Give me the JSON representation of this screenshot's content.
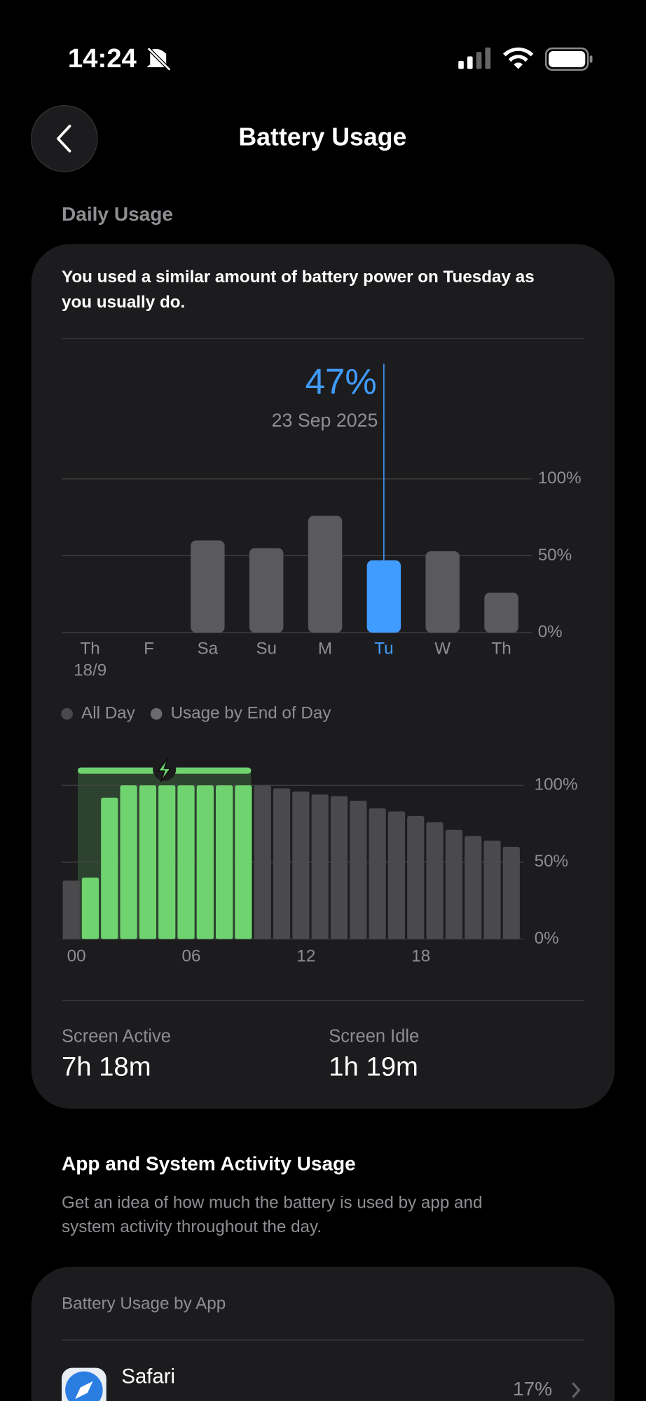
{
  "status": {
    "time": "14:24"
  },
  "header": {
    "title": "Battery Usage"
  },
  "daily": {
    "section_label": "Daily Usage",
    "summary_line1": "You used a similar amount of battery power on Tuesday as",
    "summary_line2": "you usually do.",
    "selected_date": "23 Sep 2025"
  },
  "chart_data": [
    {
      "type": "bar",
      "categories": [
        "Th",
        "F",
        "Sa",
        "Su",
        "M",
        "Tu",
        "W",
        "Th"
      ],
      "first_date": "18/9",
      "values": [
        null,
        null,
        60,
        55,
        76,
        47,
        53,
        26
      ],
      "value_labels": [
        null,
        null,
        null,
        null,
        null,
        "47%",
        null,
        null
      ],
      "colors": [
        "#5a5a5e",
        "#5a5a5e",
        "#5a5a5e",
        "#5a5a5e",
        "#5a5a5e",
        "#409cff",
        "#5a5a5e",
        "#5a5a5e"
      ],
      "ylim": [
        0,
        100
      ],
      "yticks": [
        {
          "value": 0,
          "label": "0%"
        },
        {
          "value": 50,
          "label": "50%"
        },
        {
          "value": 100,
          "label": "100%"
        }
      ],
      "grid": true,
      "legend": [
        {
          "name": "All Day",
          "color": "#4a4a4d"
        },
        {
          "name": "Usage by End of Day",
          "color": "#6b6b70"
        }
      ]
    },
    {
      "type": "bar",
      "categories": [
        "00",
        null,
        null,
        null,
        null,
        null,
        "06",
        null,
        null,
        null,
        null,
        null,
        "12",
        null,
        null,
        null,
        null,
        null,
        "18",
        null,
        null,
        null,
        null,
        null
      ],
      "values": [
        38,
        40,
        92,
        100,
        100,
        100,
        100,
        100,
        100,
        100,
        100,
        98,
        96,
        94,
        93,
        90,
        85,
        83,
        80,
        76,
        71,
        67,
        64,
        60
      ],
      "colors": [
        "#4a4a4d",
        "#6fd36f",
        "#6fd36f",
        "#6fd36f",
        "#6fd36f",
        "#6fd36f",
        "#6fd36f",
        "#6fd36f",
        "#6fd36f",
        "#6fd36f",
        "#4a4a4d",
        "#4a4a4d",
        "#4a4a4d",
        "#4a4a4d",
        "#4a4a4d",
        "#4a4a4d",
        "#4a4a4d",
        "#4a4a4d",
        "#4a4a4d",
        "#4a4a4d",
        "#4a4a4d",
        "#4a4a4d",
        "#4a4a4d",
        "#4a4a4d"
      ],
      "ylim": [
        0,
        100
      ],
      "yticks": [
        {
          "value": 0,
          "label": "0%"
        },
        {
          "value": 50,
          "label": "50%"
        },
        {
          "value": 100,
          "label": "100%"
        }
      ],
      "grid": true
    }
  ],
  "stats": [
    {
      "label": "Screen Active",
      "value": "7h 18m"
    },
    {
      "label": "Screen Idle",
      "value": "1h 19m"
    }
  ],
  "apps": {
    "title": "App and System Activity Usage",
    "desc_line1": "Get an idea of how much the battery is used by app and",
    "desc_line2": "system activity throughout the day.",
    "card_title": "Battery Usage by App",
    "items": [
      {
        "name": "Safari",
        "percent": "17%"
      }
    ]
  }
}
